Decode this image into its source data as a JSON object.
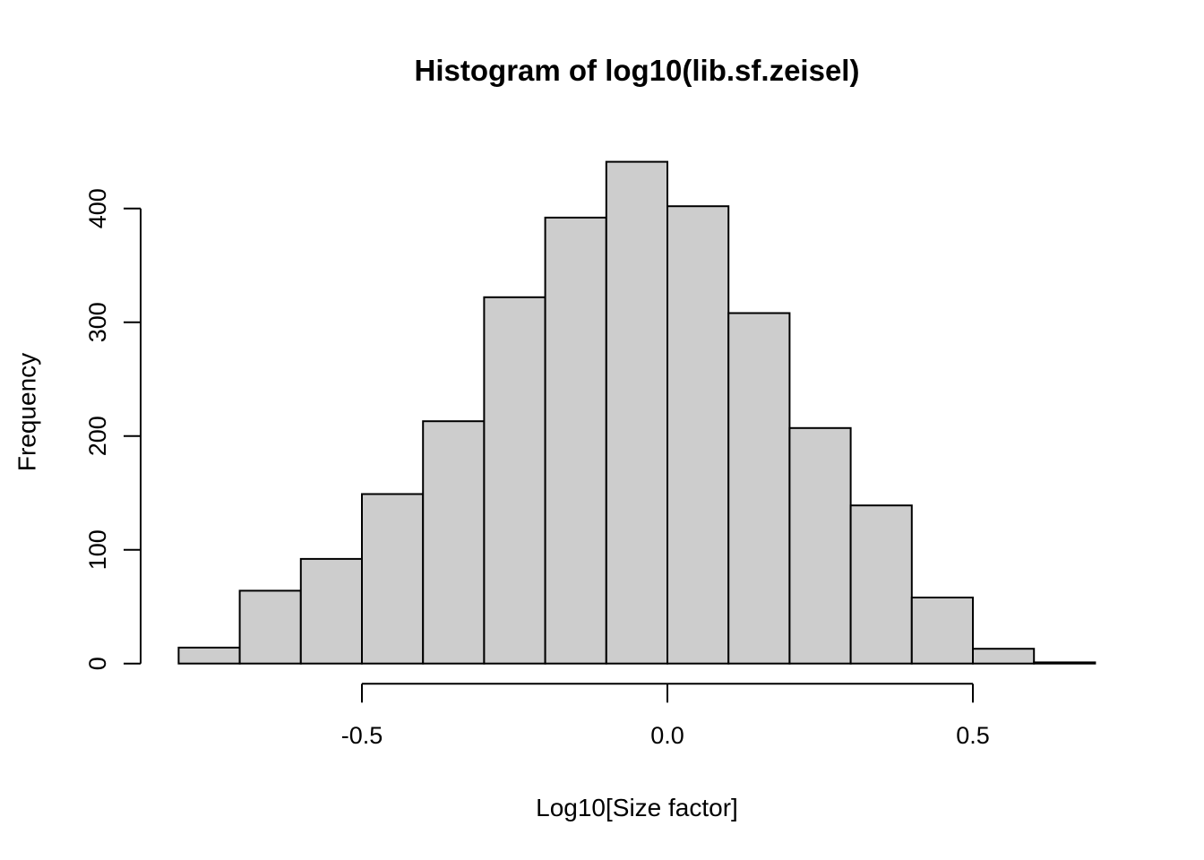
{
  "figure": {
    "background": "#FFFFFF"
  },
  "chart_data": {
    "type": "bar",
    "subtype": "histogram",
    "title": "Histogram of log10(lib.sf.zeisel)",
    "xlabel": "Log10[Size factor]",
    "ylabel": "Frequency",
    "bin_start": -0.8,
    "bin_width": 0.1,
    "bin_edges": [
      -0.8,
      -0.7,
      -0.6,
      -0.5,
      -0.4,
      -0.3,
      -0.2,
      -0.1,
      0.0,
      0.1,
      0.2,
      0.3,
      0.4,
      0.5,
      0.6,
      0.7
    ],
    "counts": [
      14,
      64,
      92,
      149,
      213,
      322,
      392,
      441,
      402,
      308,
      207,
      139,
      58,
      13,
      1
    ],
    "x_ticks": [
      -0.5,
      0.0,
      0.5
    ],
    "x_tick_labels": [
      "-0.5",
      "0.0",
      "0.5"
    ],
    "y_ticks": [
      0,
      100,
      200,
      300,
      400
    ],
    "y_tick_labels": [
      "0",
      "100",
      "200",
      "300",
      "400"
    ],
    "xlim": [
      -0.8,
      0.7
    ],
    "ylim": [
      0,
      441
    ],
    "grid": "off",
    "legend": "none",
    "bar_fill": "#CDCDCD",
    "bar_stroke": "#000000",
    "axis_color": "#000000",
    "text_color": "#000000"
  }
}
